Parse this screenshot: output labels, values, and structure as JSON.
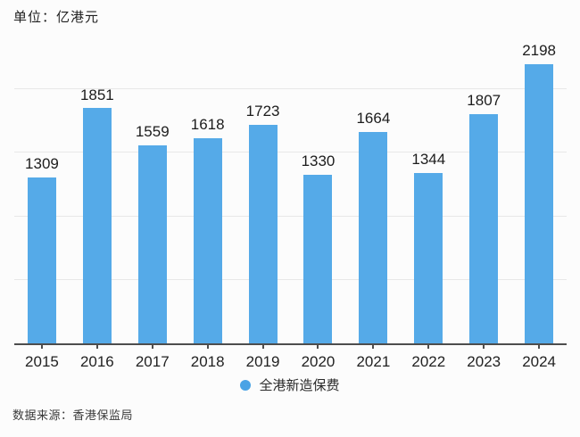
{
  "header": {
    "unit_label": "单位：亿港元"
  },
  "chart_data": {
    "type": "bar",
    "title": "",
    "xlabel": "",
    "ylabel": "",
    "unit": "亿港元",
    "categories": [
      "2015",
      "2016",
      "2017",
      "2018",
      "2019",
      "2020",
      "2021",
      "2022",
      "2023",
      "2024"
    ],
    "values": [
      1309,
      1851,
      1559,
      1618,
      1723,
      1330,
      1664,
      1344,
      1807,
      2198
    ],
    "series_name": "全港新造保费",
    "ylim": [
      0,
      2500
    ],
    "grid": true,
    "grid_interval": 500,
    "grid_levels_drawn": [
      500,
      1000,
      1500,
      2000
    ],
    "data_labels": true,
    "legend_position": "bottom",
    "bar_color": "#55aae8",
    "gridline_color": "#e8e8e8",
    "axis_color": "#4d4d4d"
  },
  "legend": {
    "label": "全港新造保费",
    "marker_color": "#4aa3e5"
  },
  "footer": {
    "source_label": "数据来源：香港保监局"
  }
}
